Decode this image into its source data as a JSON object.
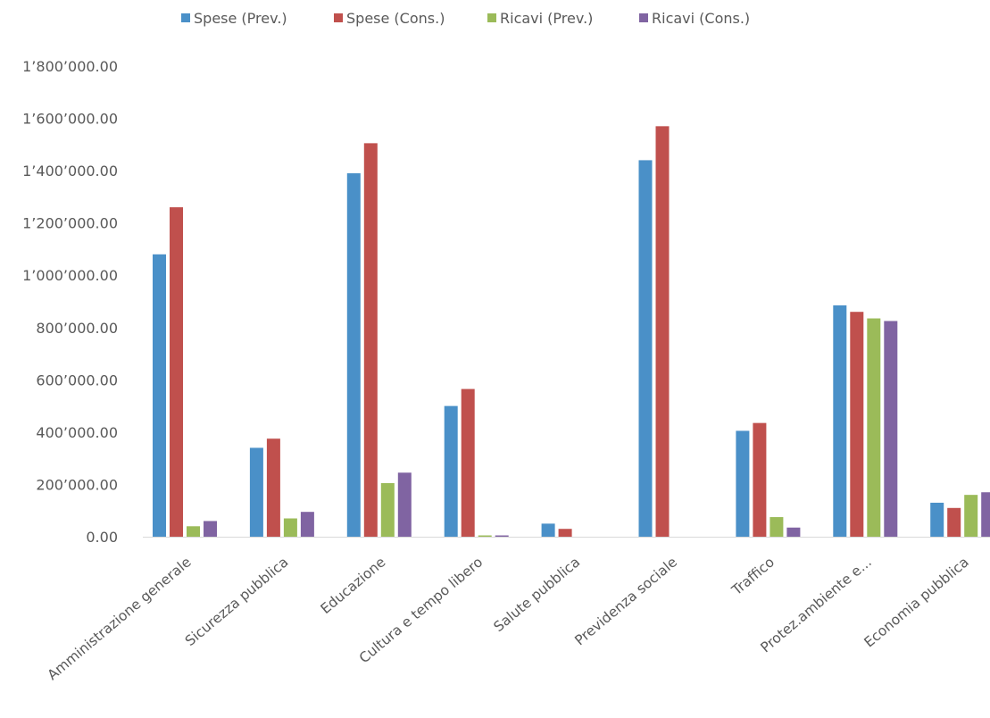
{
  "chart_data": {
    "type": "bar",
    "title": "",
    "xlabel": "",
    "ylabel": "",
    "ylim": [
      0,
      1800000
    ],
    "y_ticks": [
      "0.00",
      "200’000.00",
      "400’000.00",
      "600’000.00",
      "800’000.00",
      "1’000’000.00",
      "1’200’000.00",
      "1’400’000.00",
      "1’600’000.00",
      "1’800’000.00"
    ],
    "grid": false,
    "legend_position": "top",
    "categories": [
      "Amministrazione generale",
      "Sicurezza pubblica",
      "Educazione",
      "Cultura e tempo libero",
      "Salute pubblica",
      "Previdenza sociale",
      "Traffico",
      "Protez.ambiente e...",
      "Economia pubblica"
    ],
    "series": [
      {
        "name": "Spese (Prev.)",
        "color": "#4a90c8",
        "values": [
          1080000,
          340000,
          1390000,
          500000,
          50000,
          1440000,
          405000,
          885000,
          130000
        ]
      },
      {
        "name": "Spese (Cons.)",
        "color": "#c0504d",
        "values": [
          1260000,
          375000,
          1505000,
          565000,
          30000,
          1570000,
          435000,
          860000,
          110000
        ]
      },
      {
        "name": "Ricavi (Prev.)",
        "color": "#9bbb59",
        "values": [
          40000,
          70000,
          205000,
          5000,
          0,
          0,
          75000,
          835000,
          160000
        ]
      },
      {
        "name": "Ricavi (Cons.)",
        "color": "#8064a2",
        "values": [
          60000,
          95000,
          245000,
          5000,
          0,
          0,
          35000,
          825000,
          170000
        ]
      }
    ]
  }
}
